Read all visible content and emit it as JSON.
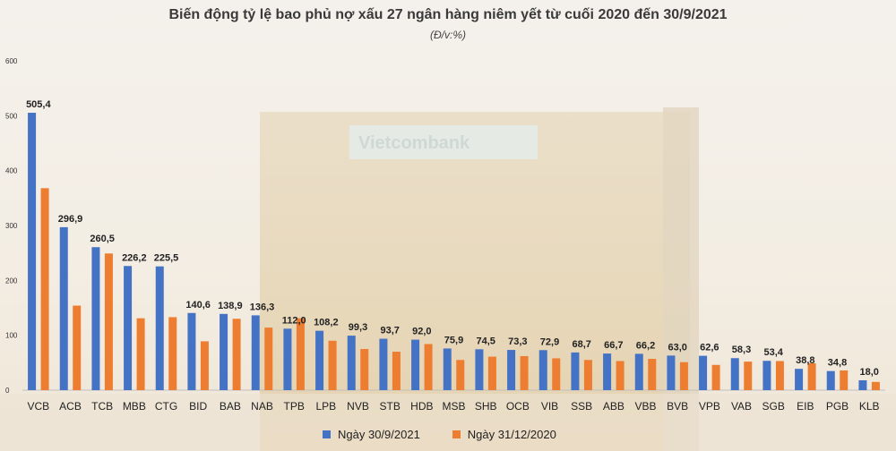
{
  "chart_data": {
    "type": "bar",
    "title": "Biến động tỷ lệ bao phủ nợ xấu 27 ngân hàng niêm yết từ cuối 2020 đến 30/9/2021",
    "subtitle": "(Đ/v:%)",
    "xlabel": "",
    "ylabel": "",
    "ylim": [
      0,
      600
    ],
    "yticks": [
      0,
      100,
      200,
      300,
      400,
      500,
      600
    ],
    "grid": false,
    "legend_position": "bottom",
    "categories": [
      "VCB",
      "ACB",
      "TCB",
      "MBB",
      "CTG",
      "BID",
      "BAB",
      "NAB",
      "TPB",
      "LPB",
      "NVB",
      "STB",
      "HDB",
      "MSB",
      "SHB",
      "OCB",
      "VIB",
      "SSB",
      "ABB",
      "VBB",
      "BVB",
      "VPB",
      "VAB",
      "SGB",
      "EIB",
      "PGB",
      "KLB"
    ],
    "series": [
      {
        "name": "Ngày 30/9/2021",
        "color": "#4472c4",
        "values": [
          505.4,
          296.9,
          260.5,
          226.2,
          225.5,
          140.6,
          138.9,
          136.3,
          112.0,
          108.2,
          99.3,
          93.7,
          92.0,
          75.9,
          74.5,
          73.3,
          72.9,
          68.7,
          66.7,
          66.2,
          63.0,
          62.6,
          58.3,
          53.4,
          38.8,
          34.8,
          18.0
        ],
        "labels": [
          "505,4",
          "296,9",
          "260,5",
          "226,2",
          "225,5",
          "140,6",
          "138,9",
          "136,3",
          "112,0",
          "108,2",
          "99,3",
          "93,7",
          "92,0",
          "75,9",
          "74,5",
          "73,3",
          "72,9",
          "68,7",
          "66,7",
          "66,2",
          "63,0",
          "62,6",
          "58,3",
          "53,4",
          "38,8",
          "34,8",
          "18,0"
        ]
      },
      {
        "name": "Ngày 31/12/2020",
        "color": "#ed7d31",
        "values": [
          368,
          154,
          249,
          131,
          133,
          89,
          130,
          114,
          131,
          90,
          75,
          70,
          84,
          55,
          61,
          62,
          58,
          55,
          53,
          57,
          51,
          46,
          52,
          53,
          49,
          36,
          15
        ]
      }
    ]
  }
}
